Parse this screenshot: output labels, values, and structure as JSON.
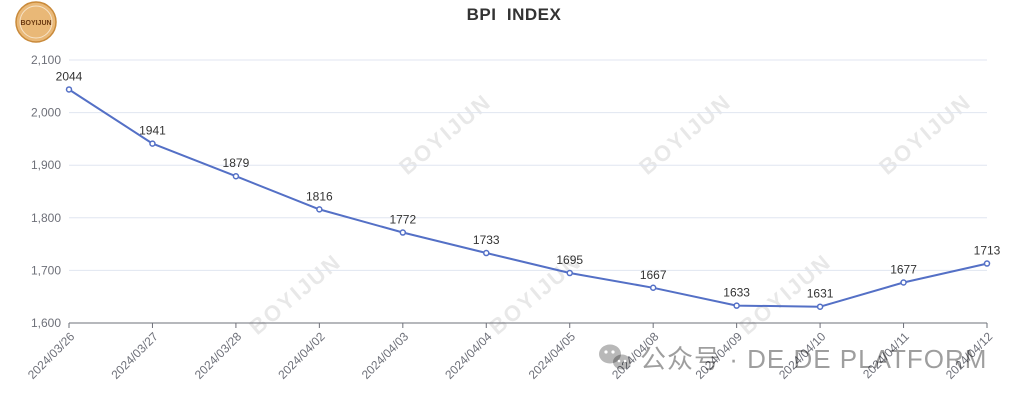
{
  "logo": {
    "text": "BOYIJUN"
  },
  "watermark": {
    "text": "BOYIJUN"
  },
  "footer": {
    "text": "公众号 · DE DE PLATFORM",
    "icon": "wechat-icon"
  },
  "colors": {
    "line": "#5470c6",
    "grid": "#e0e6f1",
    "axis": "#6e7079",
    "logo_bg": "#e9b877"
  },
  "chart_data": {
    "type": "line",
    "title": "BPI  INDEX",
    "xlabel": "",
    "ylabel": "",
    "ylim": [
      1600,
      2100
    ],
    "yticks": [
      1600,
      1700,
      1800,
      1900,
      2000,
      2100
    ],
    "ytick_labels": [
      "1,600",
      "1,700",
      "1,800",
      "1,900",
      "2,000",
      "2,100"
    ],
    "grid": true,
    "categories": [
      "2024/03/26",
      "2024/03/27",
      "2024/03/28",
      "2024/04/02",
      "2024/04/03",
      "2024/04/04",
      "2024/04/05",
      "2024/04/08",
      "2024/04/09",
      "2024/04/10",
      "2024/04/11",
      "2024/04/12"
    ],
    "series": [
      {
        "values": [
          2044,
          1941,
          1879,
          1816,
          1772,
          1733,
          1695,
          1667,
          1633,
          1631,
          1677,
          1713
        ]
      }
    ]
  }
}
